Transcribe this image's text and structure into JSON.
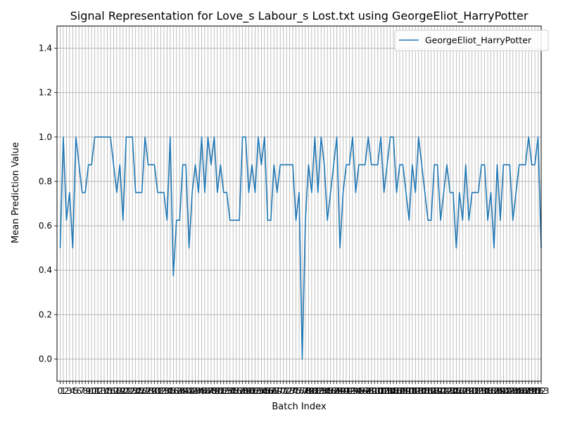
{
  "chart_data": {
    "type": "line",
    "title": "Signal Representation for Love_s Labour_s Lost.txt using GeorgeEliot_HarryPotter",
    "xlabel": "Batch Index",
    "ylabel": "Mean Prediction Value",
    "ylim": [
      -0.1,
      1.5
    ],
    "xlim": [
      -1,
      153
    ],
    "yticks": [
      0.0,
      0.2,
      0.4,
      0.6,
      0.8,
      1.0,
      1.2,
      1.4
    ],
    "grid": true,
    "legend_position": "top-right",
    "line_color": "#1f77b4",
    "series": [
      {
        "name": "GeorgeEliot_HarryPotter",
        "values": [
          0.5,
          1.0,
          0.625,
          0.75,
          0.5,
          1.0,
          0.875,
          0.75,
          0.75,
          0.875,
          0.875,
          1.0,
          1.0,
          1.0,
          1.0,
          1.0,
          1.0,
          0.875,
          0.75,
          0.875,
          0.625,
          1.0,
          1.0,
          1.0,
          0.75,
          0.75,
          0.75,
          1.0,
          0.875,
          0.875,
          0.875,
          0.75,
          0.75,
          0.75,
          0.625,
          1.0,
          0.375,
          0.625,
          0.625,
          0.875,
          0.875,
          0.5,
          0.75,
          0.875,
          0.75,
          1.0,
          0.75,
          1.0,
          0.875,
          1.0,
          0.75,
          0.875,
          0.75,
          0.75,
          0.625,
          0.625,
          0.625,
          0.625,
          1.0,
          1.0,
          0.75,
          0.875,
          0.75,
          1.0,
          0.875,
          1.0,
          0.625,
          0.625,
          0.875,
          0.75,
          0.875,
          0.875,
          0.875,
          0.875,
          0.875,
          0.625,
          0.75,
          0.0,
          0.625,
          0.875,
          0.75,
          1.0,
          0.75,
          1.0,
          0.875,
          0.625,
          0.75,
          0.875,
          1.0,
          0.5,
          0.75,
          0.875,
          0.875,
          1.0,
          0.75,
          0.875,
          0.875,
          0.875,
          1.0,
          0.875,
          0.875,
          0.875,
          1.0,
          0.75,
          0.875,
          1.0,
          1.0,
          0.75,
          0.875,
          0.875,
          0.75,
          0.625,
          0.875,
          0.75,
          1.0,
          0.875,
          0.75,
          0.625,
          0.625,
          0.875,
          0.875,
          0.625,
          0.75,
          0.875,
          0.75,
          0.75,
          0.5,
          0.75,
          0.625,
          0.875,
          0.625,
          0.75,
          0.75,
          0.75,
          0.875,
          0.875,
          0.625,
          0.75,
          0.5,
          0.875,
          0.625,
          0.875,
          0.875,
          0.875,
          0.625,
          0.75,
          0.875,
          0.875,
          0.875,
          1.0,
          0.875,
          0.875,
          1.0,
          0.5
        ]
      }
    ]
  }
}
